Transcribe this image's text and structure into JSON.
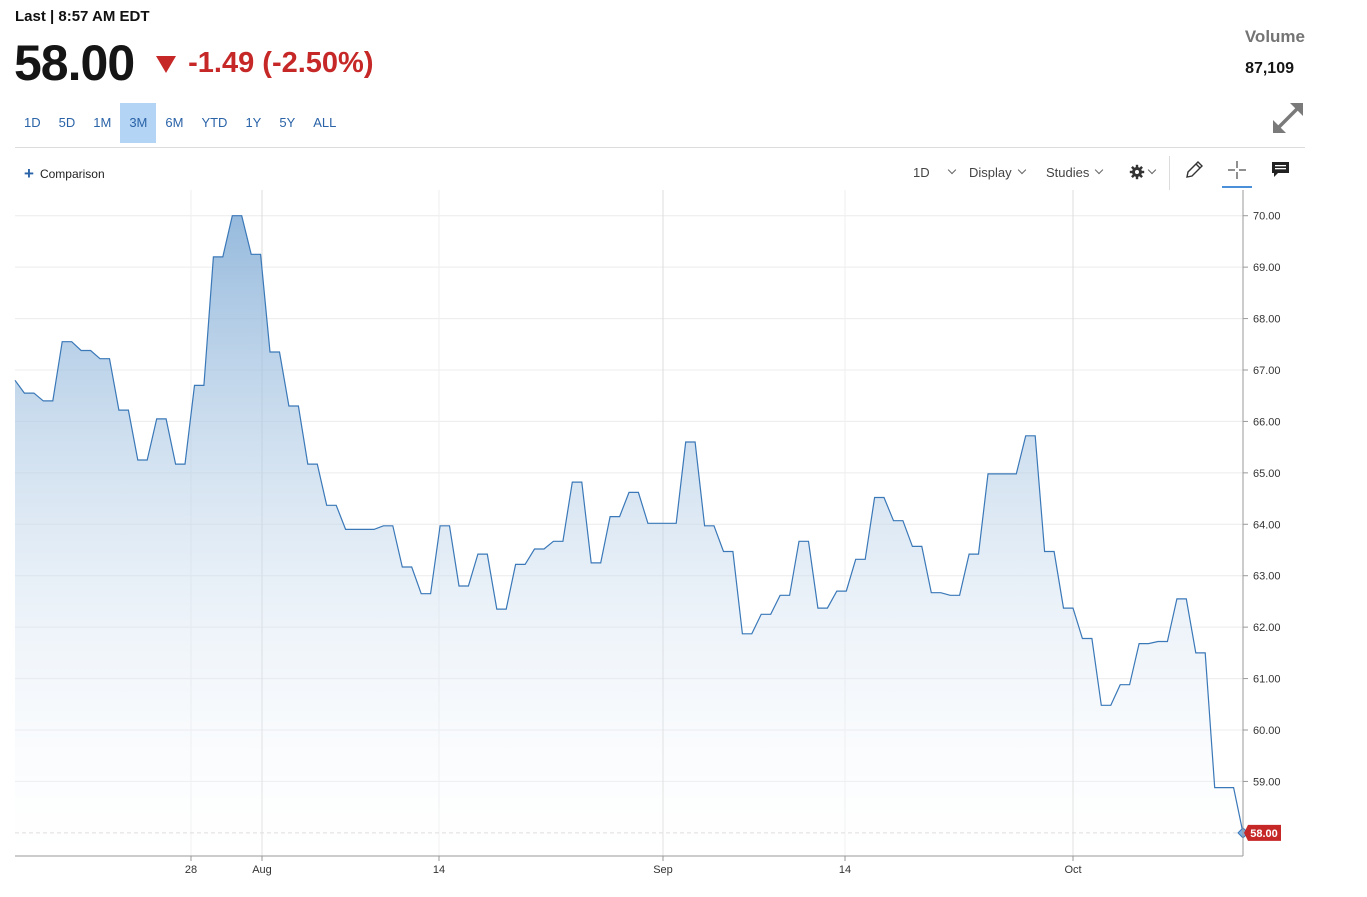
{
  "header": {
    "last_label": "Last | 8:57 AM EDT",
    "price": "58.00",
    "change": "-1.49 (-2.50%)",
    "volume_label": "Volume",
    "volume_value": "87,109"
  },
  "ranges": [
    {
      "label": "1D",
      "active": false
    },
    {
      "label": "5D",
      "active": false
    },
    {
      "label": "1M",
      "active": false
    },
    {
      "label": "3M",
      "active": true
    },
    {
      "label": "6M",
      "active": false
    },
    {
      "label": "YTD",
      "active": false
    },
    {
      "label": "1Y",
      "active": false
    },
    {
      "label": "5Y",
      "active": false
    },
    {
      "label": "ALL",
      "active": false
    }
  ],
  "toolbar": {
    "comparison_label": "Comparison",
    "interval_label": "1D",
    "display_label": "Display",
    "studies_label": "Studies"
  },
  "icons": [
    "plus-icon",
    "gear-icon",
    "pencil-icon",
    "crosshair-icon",
    "news-icon",
    "expand-icon",
    "chevron-down-icon"
  ],
  "colors": {
    "accent": "#2a63a8",
    "down": "#c62828",
    "line": "#3a78b8",
    "range_active_bg": "#b3d4f4"
  },
  "chart_data": {
    "type": "area",
    "ylim": [
      57.55,
      70.5
    ],
    "y_ticks": [
      "70.00",
      "69.00",
      "68.00",
      "67.00",
      "66.00",
      "65.00",
      "64.00",
      "63.00",
      "62.00",
      "61.00",
      "60.00",
      "59.00"
    ],
    "x_ticks": [
      "28",
      "Aug",
      "14",
      "Sep",
      "14",
      "Oct"
    ],
    "last_value_label": "58.00",
    "values": [
      66.8,
      66.55,
      66.55,
      66.4,
      66.4,
      67.55,
      67.55,
      67.38,
      67.38,
      67.22,
      67.22,
      66.22,
      66.22,
      65.25,
      65.25,
      66.05,
      66.05,
      65.17,
      65.17,
      66.7,
      66.7,
      69.2,
      69.2,
      70.0,
      70.0,
      69.25,
      69.25,
      67.35,
      67.35,
      66.3,
      66.3,
      65.17,
      65.17,
      64.37,
      64.37,
      63.9,
      63.9,
      63.9,
      63.9,
      63.97,
      63.97,
      63.17,
      63.17,
      62.65,
      62.65,
      63.97,
      63.97,
      62.8,
      62.8,
      63.42,
      63.42,
      62.35,
      62.35,
      63.22,
      63.22,
      63.52,
      63.52,
      63.67,
      63.67,
      64.82,
      64.82,
      63.25,
      63.25,
      64.15,
      64.15,
      64.62,
      64.62,
      64.02,
      64.02,
      64.02,
      64.02,
      65.6,
      65.6,
      63.97,
      63.97,
      63.47,
      63.47,
      61.87,
      61.87,
      62.25,
      62.25,
      62.62,
      62.62,
      63.67,
      63.67,
      62.37,
      62.37,
      62.7,
      62.7,
      63.32,
      63.32,
      64.52,
      64.52,
      64.07,
      64.07,
      63.57,
      63.57,
      62.67,
      62.67,
      62.62,
      62.62,
      63.42,
      63.42,
      64.98,
      64.98,
      64.98,
      64.98,
      65.72,
      65.72,
      63.47,
      63.47,
      62.37,
      62.37,
      61.78,
      61.78,
      60.48,
      60.48,
      60.88,
      60.88,
      61.68,
      61.68,
      61.72,
      61.72,
      62.55,
      62.55,
      61.5,
      61.5,
      58.88,
      58.88,
      58.88,
      58.0
    ]
  }
}
